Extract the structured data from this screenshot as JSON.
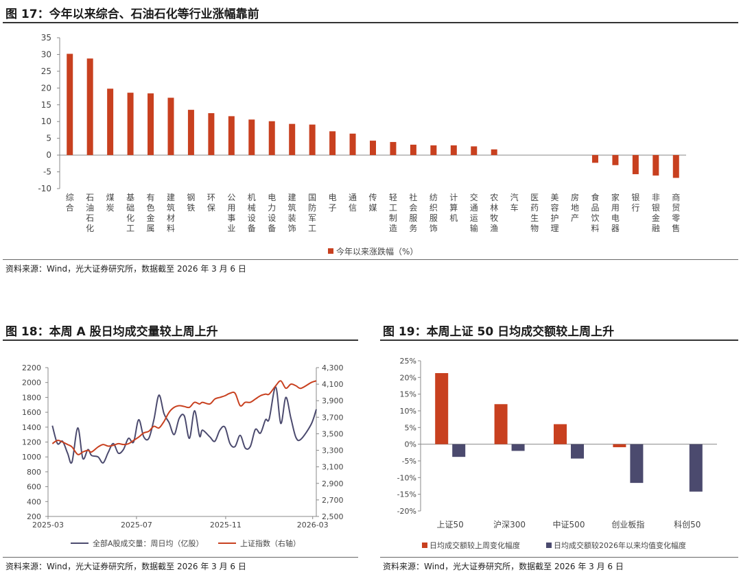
{
  "figures": {
    "fig17": {
      "title": "图 17：今年以来综合、石油石化等行业涨幅靠前",
      "source": "资料来源：Wind，光大证券研究所，数据截至 2026 年 3 月 6 日"
    },
    "fig18": {
      "title": "图 18：本周 A 股日均成交量较上周上升",
      "source": "资料来源：Wind，光大证券研究所，数据截至 2026 年 3 月 6 日"
    },
    "fig19": {
      "title": "图 19：本周上证 50 日均成交额较上周上升",
      "source": "资料来源：Wind，光大证券研究所，数据截至 2026 年 3 月 6 日"
    }
  },
  "colors": {
    "red": "#c8401f",
    "navy": "#4b4a6e",
    "axis": "#888888",
    "grid": "#d9d9d9"
  },
  "chart_data": [
    {
      "type": "bar",
      "id": "fig17",
      "title": "图 17：今年以来综合、石油石化等行业涨幅靠前",
      "categories": [
        "综合",
        "石油石化",
        "煤炭",
        "基础化工",
        "有色金属",
        "建筑材料",
        "钢铁",
        "环保",
        "公用事业",
        "机械设备",
        "电力设备",
        "建筑装饰",
        "国防军工",
        "电子",
        "通信",
        "传媒",
        "轻工制造",
        "社会服务",
        "纺织服饰",
        "计算机",
        "交通运输",
        "农林牧渔",
        "汽车",
        "医药生物",
        "美容护理",
        "房地产",
        "食品饮料",
        "家用电器",
        "银行",
        "非银金融",
        "商贸零售"
      ],
      "series": [
        {
          "name": "今年以来涨跌幅（%）",
          "color": "#c8401f",
          "values": [
            30.2,
            28.8,
            19.8,
            18.6,
            18.4,
            17.1,
            13.5,
            12.5,
            11.6,
            10.6,
            10.1,
            9.3,
            9.1,
            7.1,
            6.4,
            4.3,
            3.9,
            3.1,
            2.9,
            2.9,
            2.6,
            1.7,
            0,
            0,
            0,
            0,
            -2.3,
            -3.0,
            -5.7,
            -6.1,
            -6.8
          ]
        }
      ],
      "ylim": [
        -10,
        35
      ],
      "yticks": [
        -10,
        -5,
        0,
        5,
        10,
        15,
        20,
        25,
        30,
        35
      ],
      "legend": "bottom"
    },
    {
      "type": "line",
      "id": "fig18",
      "title": "图 18：本周 A 股日均成交量较上周上升",
      "x": [
        "2025-03-07",
        "2025-03-14",
        "2025-03-21",
        "2025-03-28",
        "2025-04-03",
        "2025-04-11",
        "2025-04-18",
        "2025-04-25",
        "2025-04-30",
        "2025-05-09",
        "2025-05-16",
        "2025-05-23",
        "2025-05-30",
        "2025-06-06",
        "2025-06-13",
        "2025-06-20",
        "2025-06-27",
        "2025-07-04",
        "2025-07-11",
        "2025-07-18",
        "2025-07-25",
        "2025-08-01",
        "2025-08-08",
        "2025-08-15",
        "2025-08-22",
        "2025-08-29",
        "2025-09-05",
        "2025-09-12",
        "2025-09-19",
        "2025-09-26",
        "2025-09-30",
        "2025-10-10",
        "2025-10-17",
        "2025-10-24",
        "2025-10-31",
        "2025-11-07",
        "2025-11-14",
        "2025-11-21",
        "2025-11-28",
        "2025-12-05",
        "2025-12-12",
        "2025-12-19",
        "2025-12-26",
        "2025-12-31",
        "2026-01-09",
        "2026-01-16",
        "2026-01-23",
        "2026-01-30",
        "2026-02-06",
        "2026-02-13",
        "2026-02-27",
        "2026-03-06"
      ],
      "xticks": [
        "2025-03",
        "2025-07",
        "2025-11",
        "2026-03"
      ],
      "series": [
        {
          "name": "全部A股成交量：周日均（亿股）",
          "axis": "left",
          "color": "#4b4a6e",
          "values": [
            1420,
            1180,
            1210,
            1050,
            930,
            1390,
            980,
            1100,
            1020,
            1000,
            920,
            1060,
            1180,
            1050,
            1100,
            1250,
            1200,
            1500,
            1270,
            1250,
            1500,
            1830,
            1580,
            1460,
            1300,
            1520,
            1550,
            1250,
            1620,
            1280,
            1360,
            1270,
            1210,
            1360,
            1400,
            1180,
            1140,
            1290,
            1120,
            1140,
            1370,
            1320,
            1500,
            1510,
            1940,
            1450,
            1800,
            1520,
            1260,
            1240,
            1440,
            1640
          ]
        },
        {
          "name": "上证指数（右轴）",
          "axis": "right",
          "color": "#c8401f",
          "values": [
            3380,
            3420,
            3400,
            3370,
            3340,
            3250,
            3280,
            3300,
            3280,
            3340,
            3370,
            3350,
            3360,
            3380,
            3370,
            3380,
            3420,
            3460,
            3510,
            3530,
            3590,
            3570,
            3650,
            3760,
            3820,
            3840,
            3830,
            3820,
            3880,
            3860,
            3880,
            3860,
            3920,
            3940,
            3960,
            3990,
            3990,
            3840,
            3880,
            3880,
            3920,
            3960,
            3980,
            3980,
            4080,
            4140,
            4050,
            4100,
            4080,
            4050,
            4120,
            4140
          ]
        }
      ],
      "ylim_left": [
        200,
        2200
      ],
      "yticks_left": [
        200,
        400,
        600,
        800,
        1000,
        1200,
        1400,
        1600,
        1800,
        2000,
        2200
      ],
      "ylim_right": [
        2500,
        4300
      ],
      "yticks_right": [
        "2,500",
        "2,700",
        "2,900",
        "3,100",
        "3,300",
        "3,500",
        "3,700",
        "3,900",
        "4,100",
        "4,300"
      ],
      "yticks_right_values": [
        2500,
        2700,
        2900,
        3100,
        3300,
        3500,
        3700,
        3900,
        4100,
        4300
      ],
      "legend": "bottom"
    },
    {
      "type": "bar",
      "id": "fig19",
      "title": "图 19：本周上证 50 日均成交额较上周上升",
      "categories": [
        "上证50",
        "沪深300",
        "中证500",
        "创业板指",
        "科创50"
      ],
      "series": [
        {
          "name": "日均成交额较上周变化幅度",
          "color": "#c8401f",
          "values": [
            21.3,
            12.0,
            6.0,
            -0.9,
            0
          ]
        },
        {
          "name": "日均成交额较2026年以来均值变化幅度",
          "color": "#4b4a6e",
          "values": [
            -3.8,
            -2.0,
            -4.3,
            -11.6,
            -14.2
          ]
        }
      ],
      "ylim": [
        -20,
        25
      ],
      "yticks": [
        "-20%",
        "-15%",
        "-10%",
        "-5%",
        "0%",
        "5%",
        "10%",
        "15%",
        "20%",
        "25%"
      ],
      "yticks_values": [
        -20,
        -15,
        -10,
        -5,
        0,
        5,
        10,
        15,
        20,
        25
      ],
      "legend": "bottom"
    }
  ]
}
